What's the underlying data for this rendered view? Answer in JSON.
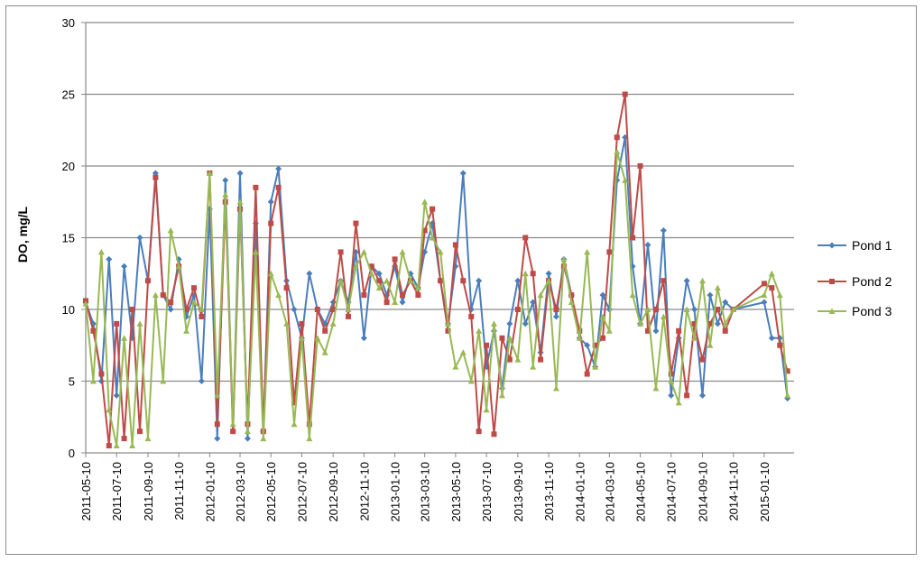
{
  "chart_data": {
    "type": "line",
    "title": "",
    "xlabel": "",
    "ylabel": "DO, mg/L",
    "ylim": [
      0,
      30
    ],
    "yticks": [
      "0",
      "5",
      "10",
      "15",
      "20",
      "25",
      "30"
    ],
    "xlim": [
      "2011-05-10",
      "2015-03-10"
    ],
    "xticks": [
      "2011-05-10",
      "2011-07-10",
      "2011-09-10",
      "2011-11-10",
      "2012-01-10",
      "2012-03-10",
      "2012-05-10",
      "2012-07-10",
      "2012-09-10",
      "2012-11-10",
      "2013-01-10",
      "2013-03-10",
      "2013-05-10",
      "2013-07-10",
      "2013-09-10",
      "2013-11-10",
      "2014-01-10",
      "2014-03-10",
      "2014-05-10",
      "2014-07-10",
      "2014-09-10",
      "2014-11-10",
      "2015-01-10"
    ],
    "grid": "horizontal",
    "legend": "right",
    "x": [
      "2011-05-10",
      "2011-05-25",
      "2011-06-10",
      "2011-06-25",
      "2011-07-10",
      "2011-07-25",
      "2011-08-10",
      "2011-08-25",
      "2011-09-10",
      "2011-09-25",
      "2011-10-10",
      "2011-10-25",
      "2011-11-10",
      "2011-11-25",
      "2011-12-10",
      "2011-12-25",
      "2012-01-10",
      "2012-01-25",
      "2012-02-10",
      "2012-02-25",
      "2012-03-10",
      "2012-03-25",
      "2012-04-10",
      "2012-04-25",
      "2012-05-10",
      "2012-05-25",
      "2012-06-10",
      "2012-06-25",
      "2012-07-10",
      "2012-07-25",
      "2012-08-10",
      "2012-08-25",
      "2012-09-10",
      "2012-09-25",
      "2012-10-10",
      "2012-10-25",
      "2012-11-10",
      "2012-11-25",
      "2012-12-10",
      "2012-12-25",
      "2013-01-10",
      "2013-01-25",
      "2013-02-10",
      "2013-02-25",
      "2013-03-10",
      "2013-03-25",
      "2013-04-10",
      "2013-04-25",
      "2013-05-10",
      "2013-05-25",
      "2013-06-10",
      "2013-06-25",
      "2013-07-10",
      "2013-07-25",
      "2013-08-10",
      "2013-08-25",
      "2013-09-10",
      "2013-09-25",
      "2013-10-10",
      "2013-10-25",
      "2013-11-10",
      "2013-11-25",
      "2013-12-10",
      "2013-12-25",
      "2014-01-10",
      "2014-01-25",
      "2014-02-10",
      "2014-02-25",
      "2014-03-10",
      "2014-03-25",
      "2014-04-10",
      "2014-04-25",
      "2014-05-10",
      "2014-05-25",
      "2014-06-10",
      "2014-06-25",
      "2014-07-10",
      "2014-07-25",
      "2014-08-10",
      "2014-08-25",
      "2014-09-10",
      "2014-09-25",
      "2014-10-10",
      "2014-10-25",
      "2014-11-10",
      "2015-01-10",
      "2015-01-25",
      "2015-02-10",
      "2015-02-25"
    ],
    "series": [
      {
        "name": "Pond 1",
        "color": "#4a7ebb",
        "marker": "diamond",
        "values": [
          10.5,
          9.0,
          5.0,
          13.5,
          4.0,
          13.0,
          8.0,
          15.0,
          12.0,
          19.5,
          11.0,
          10.0,
          13.5,
          9.5,
          11.0,
          5.0,
          17.0,
          1.0,
          19.0,
          1.5,
          19.5,
          1.0,
          16.0,
          1.5,
          17.5,
          19.8,
          12.0,
          10.0,
          8.0,
          12.5,
          10.0,
          9.0,
          10.5,
          12.0,
          10.5,
          14.0,
          8.0,
          13.0,
          12.5,
          11.0,
          13.0,
          10.5,
          12.5,
          11.5,
          14.0,
          16.0,
          12.0,
          9.0,
          13.0,
          19.5,
          10.0,
          12.0,
          6.0,
          8.5,
          4.5,
          9.0,
          12.0,
          9.0,
          10.5,
          7.0,
          12.5,
          9.5,
          13.5,
          11.0,
          8.0,
          7.5,
          6.0,
          11.0,
          10.0,
          19.0,
          22.0,
          13.0,
          9.0,
          14.5,
          8.5,
          15.5,
          4.0,
          8.0,
          12.0,
          10.0,
          4.0,
          11.0,
          9.0,
          10.5,
          10.0,
          10.5,
          8.0,
          8.0,
          3.8
        ]
      },
      {
        "name": "Pond 2",
        "color": "#be4b48",
        "marker": "square",
        "values": [
          10.6,
          8.5,
          5.5,
          0.5,
          9.0,
          1.0,
          10.0,
          1.5,
          12.0,
          19.2,
          11.0,
          10.5,
          13.0,
          10.0,
          11.5,
          9.5,
          19.5,
          2.0,
          17.5,
          1.5,
          17.0,
          2.0,
          18.5,
          1.5,
          16.0,
          18.5,
          11.5,
          3.5,
          9.0,
          2.0,
          10.0,
          8.5,
          10.0,
          14.0,
          9.5,
          16.0,
          11.0,
          13.0,
          12.0,
          10.5,
          13.5,
          11.0,
          12.0,
          11.0,
          15.5,
          17.0,
          12.0,
          8.5,
          14.5,
          12.0,
          9.5,
          1.5,
          7.5,
          1.3,
          8.0,
          6.5,
          10.0,
          15.0,
          12.5,
          6.5,
          12.0,
          10.0,
          13.0,
          11.0,
          8.5,
          5.5,
          7.5,
          8.0,
          14.0,
          22.0,
          25.0,
          15.0,
          20.0,
          8.5,
          10.0,
          12.0,
          5.5,
          8.5,
          4.0,
          9.0,
          6.5,
          9.0,
          10.0,
          8.5,
          10.0,
          11.8,
          11.5,
          7.5,
          5.7
        ]
      },
      {
        "name": "Pond 3",
        "color": "#98b954",
        "marker": "triangle",
        "values": [
          10.4,
          5.0,
          14.0,
          3.0,
          0.5,
          8.0,
          0.5,
          9.0,
          1.0,
          11.0,
          5.0,
          15.5,
          13.0,
          8.5,
          10.5,
          10.0,
          19.5,
          4.0,
          18.0,
          2.0,
          17.5,
          1.5,
          14.0,
          1.0,
          12.5,
          11.0,
          9.0,
          2.0,
          8.0,
          1.0,
          8.0,
          7.0,
          9.0,
          12.0,
          10.0,
          13.0,
          14.0,
          12.5,
          11.5,
          12.0,
          10.5,
          14.0,
          12.0,
          11.5,
          17.5,
          15.0,
          14.0,
          9.0,
          6.0,
          7.0,
          5.0,
          8.5,
          3.0,
          9.0,
          4.0,
          8.0,
          6.5,
          12.5,
          6.0,
          11.0,
          12.0,
          4.5,
          13.5,
          10.5,
          8.0,
          14.0,
          6.0,
          9.5,
          8.5,
          21.0,
          19.0,
          11.0,
          9.0,
          10.0,
          4.5,
          9.5,
          5.0,
          3.5,
          10.0,
          8.0,
          12.0,
          7.5,
          11.5,
          9.0,
          10.0,
          11.0,
          12.5,
          11.0,
          4.0
        ]
      }
    ]
  }
}
